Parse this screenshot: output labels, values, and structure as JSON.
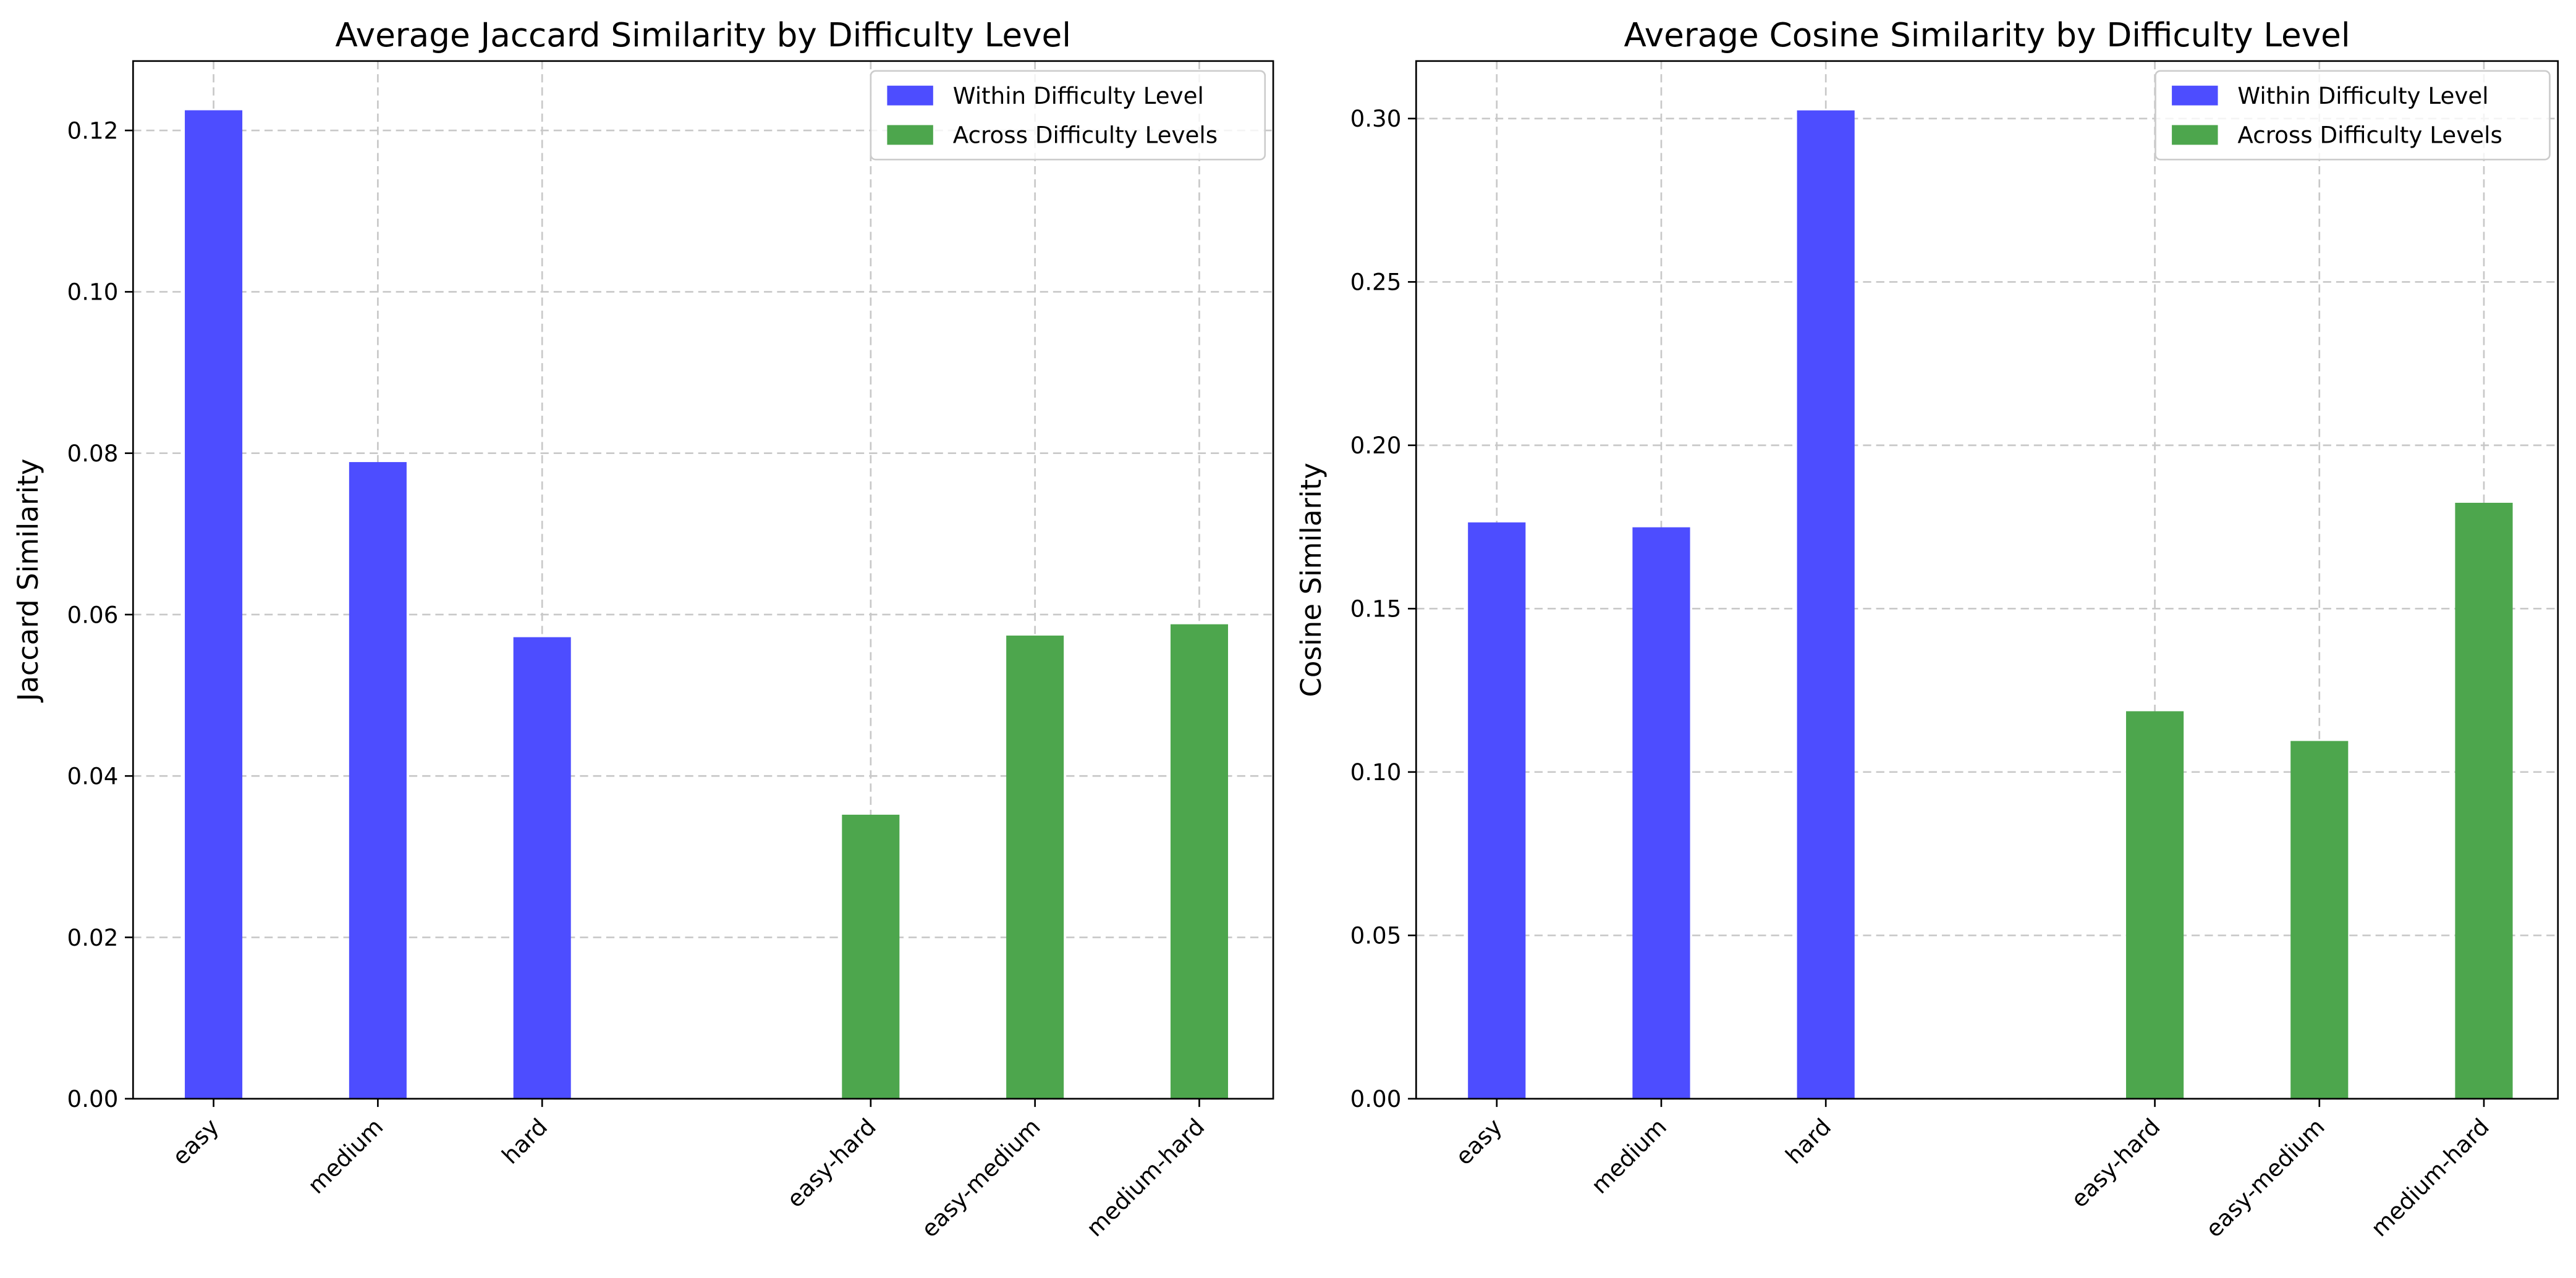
{
  "chart_data": [
    {
      "type": "bar",
      "title": "Average Jaccard Similarity by Difficulty Level",
      "y_label": "Jaccard Similarity",
      "categories": [
        "easy",
        "medium",
        "hard",
        null,
        "easy-hard",
        "easy-medium",
        "medium-hard"
      ],
      "series": [
        {
          "name": "Within Difficulty Level",
          "color": "#4d4dff",
          "values": [
            0.1225,
            0.0789,
            0.0572,
            null,
            null,
            null,
            null
          ]
        },
        {
          "name": "Across Difficulty Levels",
          "color": "#4da64d",
          "values": [
            null,
            null,
            null,
            null,
            0.0352,
            0.0574,
            0.0588
          ]
        }
      ],
      "ylim": [
        0,
        0.1286
      ],
      "yticks": [
        {
          "value": 0,
          "label": "0.00"
        },
        {
          "value": 0.02,
          "label": "0.02"
        },
        {
          "value": 0.04,
          "label": "0.04"
        },
        {
          "value": 0.06,
          "label": "0.06"
        },
        {
          "value": 0.08,
          "label": "0.08"
        },
        {
          "value": 0.1,
          "label": "0.10"
        },
        {
          "value": 0.12,
          "label": "0.12"
        }
      ],
      "grid": true,
      "legend": "upper right"
    },
    {
      "type": "bar",
      "title": "Average Cosine Similarity by Difficulty Level",
      "y_label": "Cosine Similarity",
      "categories": [
        "easy",
        "medium",
        "hard",
        null,
        "easy-hard",
        "easy-medium",
        "medium-hard"
      ],
      "series": [
        {
          "name": "Within Difficulty Level",
          "color": "#4d4dff",
          "values": [
            0.1764,
            0.1749,
            0.3025,
            null,
            null,
            null,
            null
          ]
        },
        {
          "name": "Across Difficulty Levels",
          "color": "#4da64d",
          "values": [
            null,
            null,
            null,
            null,
            0.1186,
            0.1095,
            0.1824
          ]
        }
      ],
      "ylim": [
        0,
        0.3176
      ],
      "yticks": [
        {
          "value": 0,
          "label": "0.00"
        },
        {
          "value": 0.05,
          "label": "0.05"
        },
        {
          "value": 0.1,
          "label": "0.10"
        },
        {
          "value": 0.15,
          "label": "0.15"
        },
        {
          "value": 0.2,
          "label": "0.20"
        },
        {
          "value": 0.25,
          "label": "0.25"
        },
        {
          "value": 0.3,
          "label": "0.30"
        }
      ],
      "grid": true,
      "legend": "upper right"
    }
  ]
}
